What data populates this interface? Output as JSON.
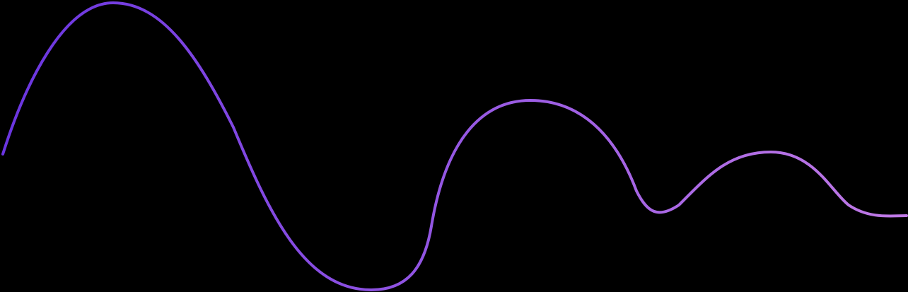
{
  "decoration": {
    "kind": "decorative wave line",
    "style": {
      "background": "#000000",
      "gradient_start": "#6a35e0",
      "gradient_end": "#c07ae6"
    }
  }
}
